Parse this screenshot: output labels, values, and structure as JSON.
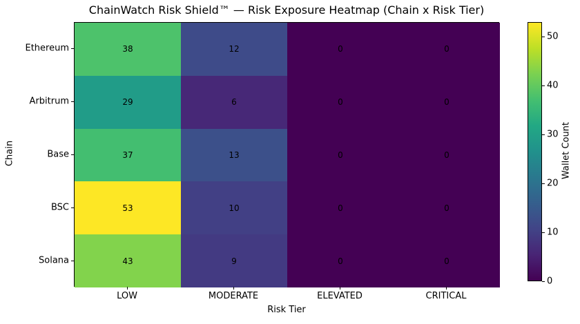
{
  "chart_data": {
    "type": "heatmap",
    "title": "ChainWatch Risk Shield™ — Risk Exposure Heatmap (Chain x Risk Tier)",
    "xlabel": "Risk Tier",
    "ylabel": "Chain",
    "x_categories": [
      "LOW",
      "MODERATE",
      "ELEVATED",
      "CRITICAL"
    ],
    "y_categories": [
      "Ethereum",
      "Arbitrum",
      "Base",
      "BSC",
      "Solana"
    ],
    "values": [
      [
        38,
        12,
        0,
        0
      ],
      [
        29,
        6,
        0,
        0
      ],
      [
        37,
        13,
        0,
        0
      ],
      [
        53,
        10,
        0,
        0
      ],
      [
        43,
        9,
        0,
        0
      ]
    ],
    "cell_colors": [
      [
        "#4dc26b",
        "#3e4b89",
        "#440154",
        "#440154"
      ],
      [
        "#219c88",
        "#472877",
        "#440154",
        "#440154"
      ],
      [
        "#43be70",
        "#3c508a",
        "#440154",
        "#440154"
      ],
      [
        "#fde725",
        "#424085",
        "#440154",
        "#440154"
      ],
      [
        "#82d34c",
        "#433a82",
        "#440154",
        "#440154"
      ]
    ],
    "annotation_color": "#000000",
    "colorbar": {
      "label": "Wallet Count",
      "colormap": "viridis",
      "vmin": 0,
      "vmax": 53,
      "ticks": [
        0,
        10,
        20,
        30,
        40,
        50
      ],
      "gradient_stops": [
        "#440154",
        "#482475",
        "#414487",
        "#355f8d",
        "#2a788e",
        "#21918c",
        "#22a884",
        "#44bf70",
        "#7ad151",
        "#bddf26",
        "#fde725"
      ]
    },
    "grid": false,
    "legend_position": "colorbar-right"
  }
}
